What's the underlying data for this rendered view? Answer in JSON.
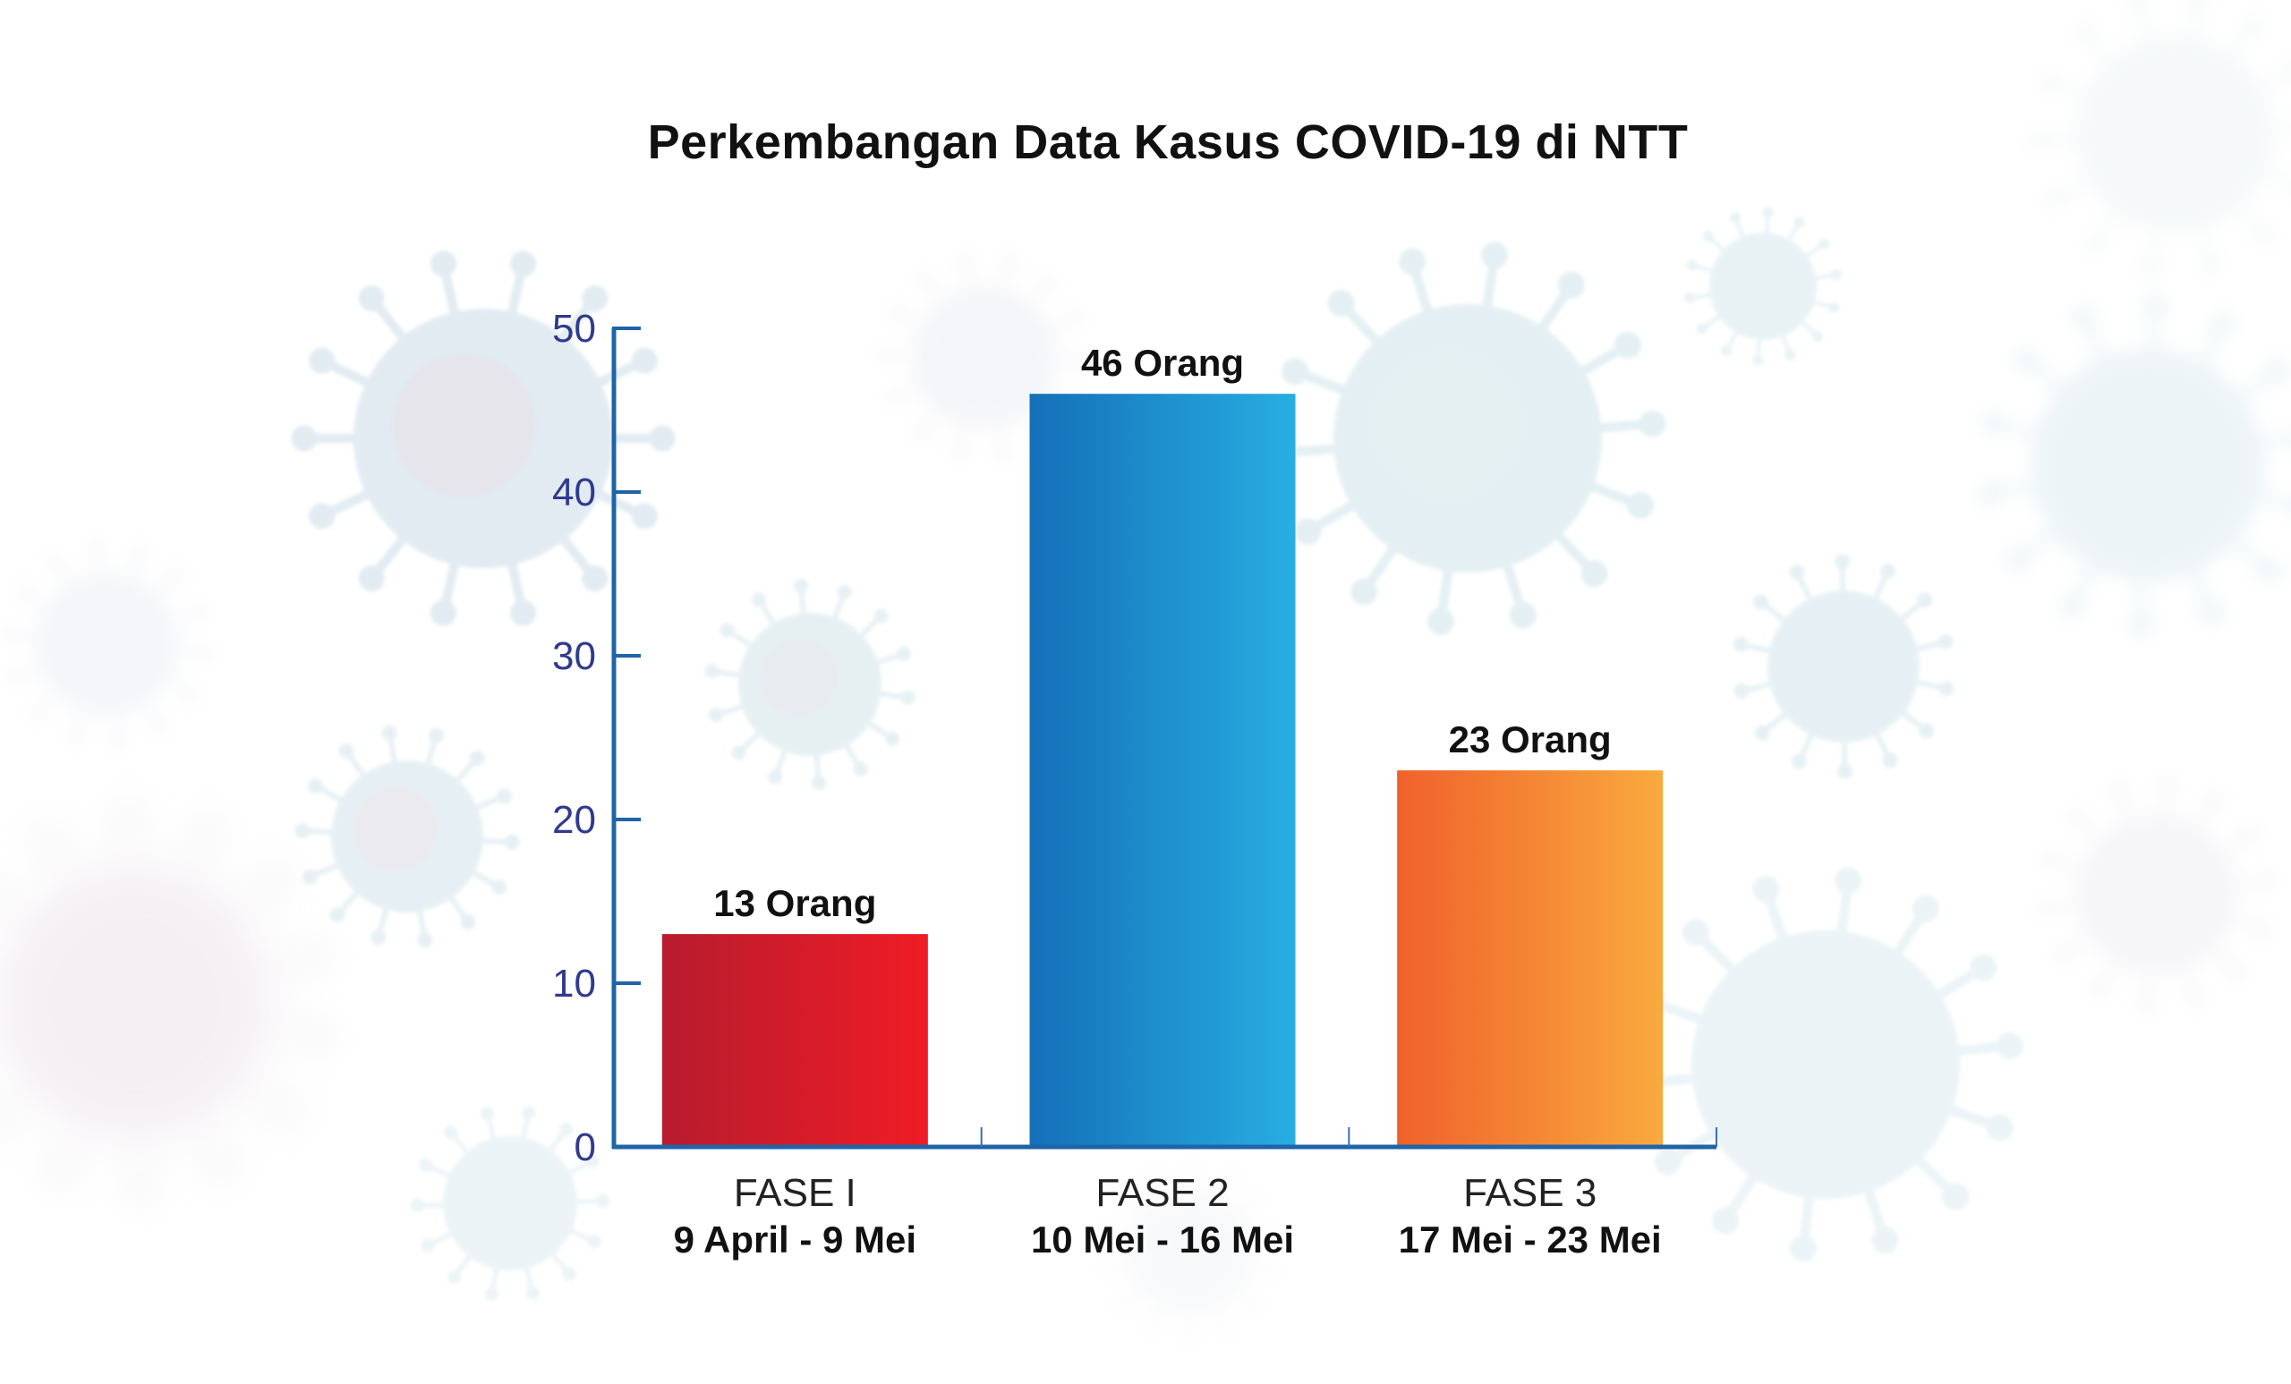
{
  "chart_data": {
    "type": "bar",
    "title": "Perkembangan Data Kasus COVID-19 di NTT",
    "categories": [
      "FASE I",
      "FASE 2",
      "FASE 3"
    ],
    "category_sublabels": [
      "9 April - 9 Mei",
      "10 Mei - 16 Mei",
      "17 Mei - 23 Mei"
    ],
    "values": [
      13,
      46,
      23
    ],
    "data_labels": [
      "13 Orang",
      "46 Orang",
      "23 Orang"
    ],
    "yticks": [
      "0",
      "10",
      "20",
      "30",
      "40",
      "50"
    ],
    "ylim": [
      0,
      50
    ],
    "xlabel": "",
    "ylabel": "",
    "grid": false,
    "bar_colors": [
      [
        "#b71c2e",
        "#ef1c25"
      ],
      [
        "#1470b8",
        "#27aee2"
      ],
      [
        "#f0612a",
        "#f9aa3e"
      ]
    ],
    "axis_color": "#1f64a8",
    "tick_color": "#2f3a8f"
  }
}
